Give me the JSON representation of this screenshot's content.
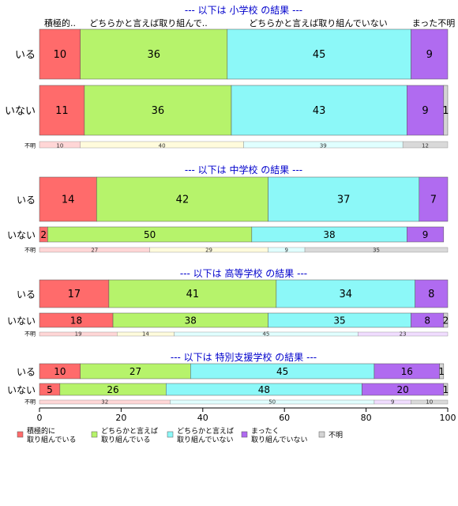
{
  "chart_data": {
    "type": "bar",
    "orientation": "horizontal",
    "stacked": true,
    "percent_scale": true,
    "xlim": [
      0,
      100
    ],
    "x_ticks": [
      0,
      20,
      40,
      60,
      80,
      100
    ],
    "column_headers": [
      "積極的..",
      "どちらかと言えば取り組んで..",
      "どちらかと言えば取り組んでいない",
      "まった不明"
    ],
    "categories_legend": [
      {
        "label": "積極的に\n取り組んでいる",
        "color": "#ff6b6b"
      },
      {
        "label": "どちらかと言えば\n取り組んでいる",
        "color": "#b6f36b"
      },
      {
        "label": "どちらかと言えば\n取り組んでいない",
        "color": "#8cf8f8"
      },
      {
        "label": "まったく\n取り組んでいない",
        "color": "#b06bf0"
      },
      {
        "label": "不明",
        "color": "#d4d4d4"
      }
    ],
    "panels": [
      {
        "title": "--- 以下は 小学校 の結果 ---",
        "rows": [
          {
            "label": "いる",
            "values": [
              10,
              36,
              45,
              9,
              0
            ]
          },
          {
            "label": "いない",
            "values": [
              11,
              36,
              43,
              9,
              1
            ]
          }
        ],
        "unknown_row": {
          "label": "不明",
          "values": [
            10,
            40,
            39,
            0,
            12
          ]
        }
      },
      {
        "title": "--- 以下は 中学校 の結果 ---",
        "rows": [
          {
            "label": "いる",
            "values": [
              14,
              42,
              37,
              7,
              0
            ]
          },
          {
            "label": "いない",
            "values": [
              2,
              50,
              38,
              9,
              0
            ]
          }
        ],
        "unknown_row": {
          "label": "不明",
          "values": [
            27,
            29,
            9,
            0,
            35
          ]
        }
      },
      {
        "title": "--- 以下は 高等学校 の結果 ---",
        "rows": [
          {
            "label": "いる",
            "values": [
              17,
              41,
              34,
              8,
              0
            ]
          },
          {
            "label": "いない",
            "values": [
              18,
              38,
              35,
              8,
              2
            ]
          }
        ],
        "unknown_row": {
          "label": "不明",
          "values": [
            19,
            14,
            45,
            23,
            0
          ]
        }
      },
      {
        "title": "--- 以下は 特別支援学校 の結果 ---",
        "rows": [
          {
            "label": "いる",
            "values": [
              10,
              27,
              45,
              16,
              1
            ]
          },
          {
            "label": "いない",
            "values": [
              5,
              26,
              48,
              20,
              1
            ]
          }
        ],
        "unknown_row": {
          "label": "不明",
          "values": [
            32,
            0,
            50,
            9,
            10
          ]
        }
      }
    ]
  }
}
